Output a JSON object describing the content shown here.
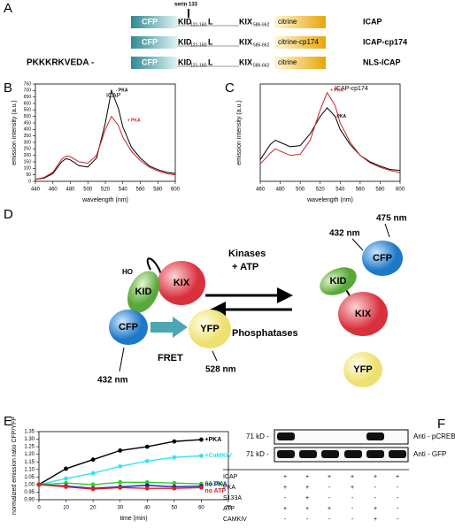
{
  "panel_labels": [
    "A",
    "B",
    "C",
    "D",
    "E",
    "F"
  ],
  "constructs": {
    "serine_label": "serin 133",
    "rows": [
      {
        "prefix": null,
        "cfp": "CFP",
        "kid": "KID",
        "kid_range": "121-160",
        "linker": "L",
        "kix": "KIX",
        "kix_range": "586-662",
        "fp": "citrine",
        "name": "ICAP"
      },
      {
        "prefix": null,
        "cfp": "CFP",
        "kid": "KID",
        "kid_range": "121-160",
        "linker": "L",
        "kix": "KIX",
        "kix_range": "586-662",
        "fp": "citrine-cp174",
        "name": "ICAP-cp174"
      },
      {
        "prefix": "PKKKRKVEDA -",
        "cfp": "CFP",
        "kid": "KID",
        "kid_range": "121-160",
        "linker": "L",
        "kix": "KIX",
        "kix_range": "586-662",
        "fp": "citrine",
        "name": "NLS-ICAP"
      }
    ]
  },
  "chart_data": [
    {
      "type": "line",
      "title": "ICAP",
      "x_label": "wavelength (nm)",
      "y_label": "emission intensity (a.u.)",
      "x": [
        440,
        450,
        460,
        470,
        475,
        480,
        490,
        500,
        510,
        520,
        527,
        535,
        540,
        550,
        560,
        570,
        580,
        590,
        600
      ],
      "series": [
        {
          "name": "- PKA",
          "color": "#000000",
          "values": [
            15,
            25,
            60,
            150,
            175,
            165,
            120,
            110,
            180,
            450,
            700,
            560,
            420,
            260,
            180,
            120,
            90,
            70,
            60
          ]
        },
        {
          "name": "+ PKA",
          "color": "#d0202a",
          "values": [
            15,
            30,
            70,
            170,
            195,
            190,
            150,
            140,
            200,
            400,
            500,
            430,
            340,
            230,
            160,
            110,
            80,
            60,
            50
          ]
        }
      ],
      "xlim": [
        440,
        600
      ],
      "xticks": [
        440,
        460,
        480,
        500,
        520,
        540,
        560,
        580,
        600
      ],
      "ylim": [
        0,
        750
      ],
      "yticks": [
        0,
        50,
        100,
        150,
        200,
        250,
        300,
        350,
        400,
        450,
        500,
        550,
        600,
        650,
        700,
        750
      ]
    },
    {
      "type": "line",
      "title": "ICAP-cp174",
      "x_label": "wavelength (nm)",
      "y_label": "emission intensity (a.u.)",
      "x": [
        460,
        470,
        475,
        480,
        490,
        500,
        510,
        520,
        527,
        535,
        540,
        550,
        560,
        570,
        580,
        590,
        600
      ],
      "series": [
        {
          "name": "- PKA",
          "color": "#000000",
          "values": [
            100,
            170,
            190,
            180,
            160,
            165,
            220,
            300,
            340,
            300,
            240,
            170,
            120,
            90,
            70,
            55,
            50
          ]
        },
        {
          "name": "+ PKA",
          "color": "#d0202a",
          "values": [
            80,
            130,
            150,
            140,
            120,
            125,
            190,
            330,
            410,
            350,
            270,
            180,
            120,
            85,
            65,
            50,
            40
          ]
        }
      ],
      "xlim": [
        460,
        600
      ],
      "xticks": [
        460,
        480,
        500,
        520,
        540,
        560,
        580,
        600
      ],
      "ylim": [
        0,
        450
      ]
    },
    {
      "type": "line",
      "x_label": "time (min)",
      "y_label": "normalized emission ratio CFP/YFP",
      "markers": true,
      "x": [
        0,
        10,
        20,
        30,
        40,
        50,
        60
      ],
      "series": [
        {
          "name": "+PKA",
          "color": "#000000",
          "values": [
            1.0,
            1.105,
            1.165,
            1.225,
            1.25,
            1.285,
            1.297
          ]
        },
        {
          "name": "+CaMKIV",
          "color": "#2ee6f0",
          "values": [
            1.0,
            1.04,
            1.075,
            1.12,
            1.155,
            1.18,
            1.19
          ]
        },
        {
          "name": "S133A",
          "color": "#33cc33",
          "values": [
            1.0,
            1.01,
            1.0,
            1.015,
            1.015,
            1.01,
            1.005
          ]
        },
        {
          "name": "no PKA",
          "color": "#1a1aa8",
          "values": [
            1.0,
            0.99,
            0.975,
            0.985,
            0.995,
            0.985,
            0.99
          ]
        },
        {
          "name": "no ATP",
          "color": "#e0202a",
          "values": [
            1.0,
            0.985,
            0.97,
            0.98,
            0.975,
            0.975,
            0.98
          ]
        }
      ],
      "xlim": [
        0,
        70
      ],
      "xticks": [
        0,
        10,
        20,
        30,
        40,
        50,
        60,
        70
      ],
      "ylim": [
        0.9,
        1.35
      ],
      "yticks": [
        {
          "value": 0.9,
          "label": "0.90"
        },
        0.95,
        {
          "value": 1.0,
          "label": "1.00"
        },
        1.05,
        {
          "value": 1.1,
          "label": "1.10"
        },
        1.15,
        {
          "value": 1.2,
          "label": "1.20"
        },
        1.25,
        {
          "value": 1.3,
          "label": "1.30"
        },
        1.35
      ]
    }
  ],
  "mechanism": {
    "em_cfp": "475 nm",
    "ex_top": "432 nm",
    "kinases": "Kinases",
    "atp": "+ ATP",
    "cfp": "CFP",
    "kid": "KID",
    "kix": "KIX",
    "yfp": "YFP",
    "ho": "HO",
    "phosphatases": "Phosphatases",
    "fret": "FRET",
    "ex_bottom": "432 nm",
    "em_yfp": "528 nm"
  },
  "blot": {
    "marker": "71 kD -",
    "antibodies": [
      "Anti - pCREB",
      "Anti - GFP"
    ],
    "conditions": [
      {
        "name": "ICAP",
        "cells": [
          "+",
          "+",
          "+",
          "+",
          "+",
          "+"
        ]
      },
      {
        "name": "PKA",
        "cells": [
          "+",
          "+",
          "-",
          "+",
          "-",
          "-"
        ]
      },
      {
        "name": "S133A",
        "cells": [
          "-",
          "+",
          "-",
          "-",
          "-",
          "-"
        ]
      },
      {
        "name": "ATP",
        "cells": [
          "+",
          "+",
          "+",
          "-",
          "+",
          "-"
        ]
      },
      {
        "name": "CAMKIV",
        "cells": [
          "-",
          "-",
          "-",
          "-",
          "+",
          "-"
        ]
      }
    ]
  }
}
